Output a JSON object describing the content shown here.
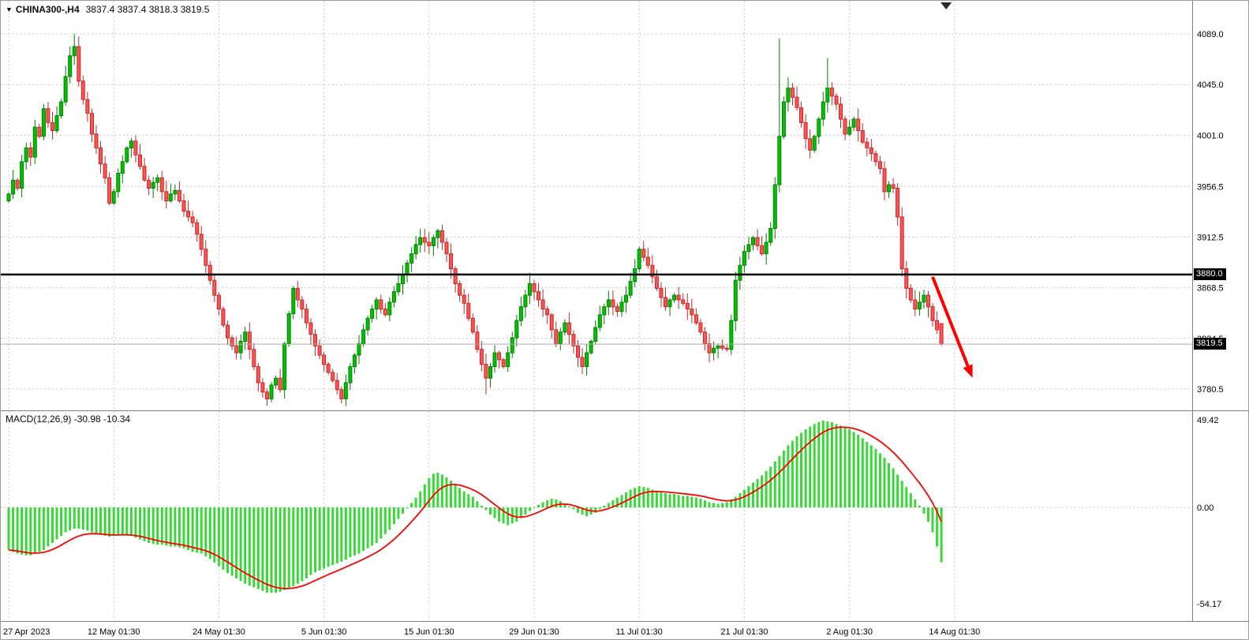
{
  "title": {
    "icon": "▼",
    "symbol_period": "CHINA300-,H4",
    "ohlc": "3837.4 3837.4 3818.3 3819.5"
  },
  "macd": {
    "label": "MACD(12,26,9) -30.98 -10.34"
  },
  "chart_data": {
    "type": "candlestick",
    "symbol": "CHINA300-",
    "timeframe": "H4",
    "subpanel": "MACD histogram with signal line",
    "price_axis": {
      "labels": [
        "4089.0",
        "4045.0",
        "4001.0",
        "3956.5",
        "3912.5",
        "3868.5",
        "3824.5",
        "3780.5"
      ],
      "values": [
        4089.0,
        4045.0,
        4001.0,
        3956.5,
        3912.5,
        3868.5,
        3824.5,
        3780.5
      ]
    },
    "macd_axis": {
      "labels": [
        "49.42",
        "0.00",
        "-54.17"
      ],
      "values": [
        49.42,
        0,
        -54.17
      ]
    },
    "time_labels": [
      {
        "index": 0,
        "text": "27 Apr 2023"
      },
      {
        "index": 24,
        "text": "12 May 01:30"
      },
      {
        "index": 48,
        "text": "24 May 01:30"
      },
      {
        "index": 72,
        "text": "5 Jun 01:30"
      },
      {
        "index": 96,
        "text": "15 Jun 01:30"
      },
      {
        "index": 120,
        "text": "29 Jun 01:30"
      },
      {
        "index": 144,
        "text": "11 Jul 01:30"
      },
      {
        "index": 168,
        "text": "21 Jul 01:30"
      },
      {
        "index": 192,
        "text": "2 Aug 01:30"
      },
      {
        "index": 216,
        "text": "14 Aug 01:30"
      }
    ],
    "open_first": 3944,
    "closes": [
      3950,
      3962,
      3955,
      3978,
      3990,
      3982,
      4008,
      4000,
      4024,
      4012,
      4005,
      4018,
      4030,
      4052,
      4070,
      4078,
      4048,
      4032,
      4020,
      4002,
      3990,
      3976,
      3964,
      3942,
      3952,
      3968,
      3978,
      3990,
      3996,
      3984,
      3974,
      3962,
      3955,
      3960,
      3964,
      3952,
      3944,
      3950,
      3953,
      3944,
      3935,
      3930,
      3925,
      3915,
      3902,
      3888,
      3875,
      3862,
      3850,
      3836,
      3825,
      3818,
      3812,
      3822,
      3830,
      3815,
      3800,
      3786,
      3778,
      3772,
      3784,
      3790,
      3780,
      3820,
      3846,
      3868,
      3858,
      3850,
      3838,
      3828,
      3818,
      3810,
      3802,
      3795,
      3788,
      3780,
      3772,
      3786,
      3800,
      3810,
      3820,
      3832,
      3842,
      3850,
      3858,
      3850,
      3845,
      3856,
      3865,
      3872,
      3880,
      3890,
      3898,
      3906,
      3912,
      3908,
      3905,
      3912,
      3918,
      3908,
      3898,
      3885,
      3872,
      3862,
      3855,
      3842,
      3830,
      3815,
      3802,
      3790,
      3800,
      3812,
      3806,
      3800,
      3812,
      3825,
      3840,
      3852,
      3862,
      3872,
      3865,
      3858,
      3850,
      3845,
      3832,
      3820,
      3830,
      3838,
      3828,
      3818,
      3808,
      3800,
      3812,
      3822,
      3834,
      3845,
      3852,
      3858,
      3852,
      3848,
      3856,
      3862,
      3874,
      3885,
      3902,
      3895,
      3888,
      3878,
      3868,
      3860,
      3852,
      3858,
      3862,
      3858,
      3855,
      3850,
      3845,
      3838,
      3830,
      3820,
      3812,
      3816,
      3818,
      3816,
      3815,
      3840,
      3875,
      3888,
      3900,
      3906,
      3912,
      3905,
      3898,
      3908,
      3920,
      3958,
      4000,
      4030,
      4042,
      4034,
      4025,
      4012,
      3998,
      3988,
      4000,
      4015,
      4030,
      4042,
      4035,
      4028,
      4015,
      4002,
      4008,
      4015,
      4005,
      3995,
      3990,
      3985,
      3978,
      3972,
      3952,
      3958,
      3955,
      3930,
      3885,
      3868,
      3858,
      3850,
      3856,
      3862,
      3852,
      3840,
      3832,
      3819.5
    ],
    "macd": [
      -24,
      -25,
      -26,
      -26.5,
      -27,
      -27,
      -26,
      -25,
      -24,
      -22,
      -20,
      -18,
      -16,
      -14,
      -13,
      -12,
      -12,
      -12.5,
      -13,
      -14,
      -15,
      -15.5,
      -16,
      -16.5,
      -16,
      -15.5,
      -15,
      -15.5,
      -16,
      -17,
      -18,
      -19,
      -20,
      -20.5,
      -21,
      -21,
      -21.5,
      -22,
      -22,
      -22.5,
      -23,
      -24,
      -25,
      -25.5,
      -26,
      -27.5,
      -29,
      -31,
      -33,
      -35,
      -37,
      -38.5,
      -40,
      -41.5,
      -43,
      -44,
      -45,
      -46,
      -47,
      -48,
      -48,
      -48,
      -47.5,
      -46.5,
      -45.5,
      -44.5,
      -43,
      -41.5,
      -40,
      -38,
      -36.5,
      -35.5,
      -34.5,
      -33.5,
      -32.5,
      -31.5,
      -30.5,
      -29.5,
      -28,
      -27,
      -26,
      -24.5,
      -23,
      -21.5,
      -20,
      -17.5,
      -15,
      -12.5,
      -9.5,
      -6.5,
      -3.5,
      -0.5,
      2.5,
      5.5,
      9,
      13,
      16.5,
      19,
      19.5,
      18.5,
      17,
      15,
      13,
      11,
      9,
      7.5,
      6,
      3.5,
      1,
      -1.5,
      -4,
      -6,
      -8,
      -9,
      -10,
      -9,
      -8,
      -6,
      -4,
      -2,
      0,
      1.5,
      3,
      4,
      5,
      4.5,
      3.5,
      2,
      0.5,
      -1,
      -3,
      -4,
      -5,
      -4,
      -3,
      -1,
      1,
      2.5,
      4,
      5.5,
      7,
      8.5,
      10,
      11,
      12,
      11.5,
      11,
      10,
      9,
      8.5,
      8,
      7.5,
      7.5,
      7,
      6.5,
      6.5,
      6,
      5.5,
      5,
      4,
      3,
      2.5,
      2,
      2.5,
      3,
      4.5,
      6,
      8,
      10,
      12,
      14,
      16,
      18,
      20.5,
      23,
      26,
      29,
      32,
      35,
      37.5,
      40,
      42,
      44,
      45.5,
      47,
      48,
      49,
      48.5,
      48,
      47,
      46,
      45,
      44,
      42.5,
      41,
      39,
      37,
      35,
      33,
      30.5,
      28,
      25,
      22,
      18.5,
      15,
      11.5,
      8,
      4.5,
      1,
      -3.5,
      -8,
      -14,
      -22,
      -30.98
    ],
    "macd_params": [
      12,
      26,
      9
    ],
    "macd_current": [
      -30.98,
      -10.34
    ],
    "last_bar": {
      "open": 3837.4,
      "high": 3837.4,
      "low": 3818.3,
      "close": 3819.5
    },
    "special_highs": {
      "15": 4089,
      "176": 4085,
      "187": 4068
    },
    "special_lows": {
      "59": 3766,
      "76": 3768,
      "109": 3776
    },
    "level_line": {
      "price": 3880.0,
      "label": "3880.0"
    },
    "current_price": {
      "value": 3819.5,
      "label": "3819.5"
    },
    "arrow": {
      "from_index": 211,
      "from_price": 3878,
      "to_index": 219.5,
      "to_price": 3796
    },
    "colors": {
      "up": "#00c300",
      "up_stroke": "#008000",
      "down": "#ff5252",
      "down_stroke": "#c62828",
      "macd_bar": "#39d839",
      "signal": "#ff0000",
      "grid": "#c8c8c8",
      "level": "#000000",
      "bid_line": "#aaaaaa",
      "arrow": "#ff0000",
      "tag_bg": "#000000",
      "tag_fg": "#ffffff",
      "axis_text": "#000000",
      "background": "#ffffff"
    }
  }
}
